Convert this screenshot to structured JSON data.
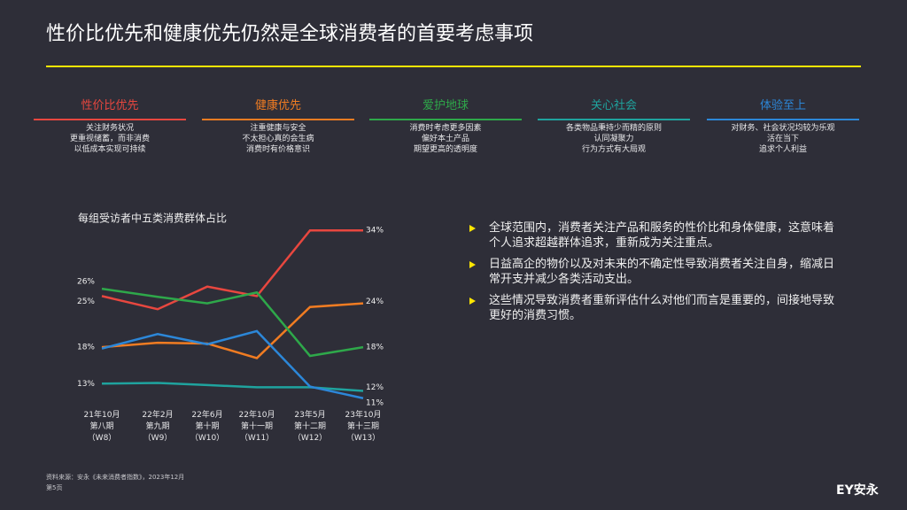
{
  "title": "性价比优先和健康优先仍然是全球消费者的首要考虑事项",
  "segments": [
    {
      "description": [
        "关注财务状况",
        "更重视储蓄，而非消费",
        "以低成本实现可持续"
      ]
    },
    {
      "description": [
        "注重健康与安全",
        "不太担心真的会生病",
        "消费时有价格意识"
      ]
    },
    {
      "description": [
        "消费时考虑更多因素",
        "偏好本土产品",
        "期望更高的透明度"
      ]
    },
    {
      "description": [
        "各类物品秉持少而精的原则",
        "认同凝聚力",
        "行为方式有大局观"
      ]
    },
    {
      "description": [
        "对财务、社会状况均较为乐观",
        "活在当下",
        "追求个人利益"
      ]
    }
  ],
  "chart_data": {
    "type": "line",
    "title": "每组受访者中五类消费群体占比",
    "categories": [
      "21年10月\n第八期\n（W8）",
      "22年2月\n第九期\n（W9）",
      "22年6月\n第十期\n（W10）",
      "22年10月\n第十一期\n（W11）",
      "23年5月\n第十二期\n（W12）",
      "23年10月\n第十三期\n（W13）"
    ],
    "ylim": [
      10,
      35
    ],
    "series": [
      {
        "name": "性价比优先",
        "color": "#e8473f",
        "values": [
          25,
          23.2,
          26.3,
          25,
          34,
          34
        ],
        "value_labels": [
          "25%",
          null,
          null,
          null,
          null,
          "34%"
        ]
      },
      {
        "name": "健康优先",
        "color": "#f07c22",
        "values": [
          18,
          18.6,
          18.5,
          16.5,
          23.5,
          24
        ],
        "value_labels": [
          "18%",
          null,
          null,
          null,
          null,
          "24%"
        ]
      },
      {
        "name": "爱护地球",
        "color": "#2ea84a",
        "values": [
          26,
          24.9,
          24,
          25.5,
          16.8,
          18
        ],
        "value_labels": [
          "26%",
          null,
          null,
          null,
          null,
          "18%"
        ]
      },
      {
        "name": "关心社会",
        "color": "#1fa39e",
        "values": [
          13,
          13.1,
          12.8,
          12.5,
          12.5,
          12
        ],
        "value_labels": [
          "13%",
          null,
          null,
          null,
          null,
          "12%"
        ]
      },
      {
        "name": "体验至上",
        "color": "#2c87d8",
        "values": [
          17.8,
          19.8,
          18.4,
          20.2,
          12.6,
          11
        ],
        "value_labels": [
          null,
          null,
          null,
          null,
          null,
          "11%"
        ]
      }
    ]
  },
  "bullets": [
    "全球范围内，消费者关注产品和服务的性价比和身体健康，这意味着个人追求超越群体追求，重新成为关注重点。",
    "日益高企的物价以及对未来的不确定性导致消费者关注自身，缩减日常开支并减少各类活动支出。",
    "这些情况导致消费者重新评估什么对他们而言是重要的，间接地导致更好的消费习惯。"
  ],
  "source": "资料来源：安永《未来消费者指数》，2023年12月",
  "page": "第5页",
  "logo": "EY安永"
}
